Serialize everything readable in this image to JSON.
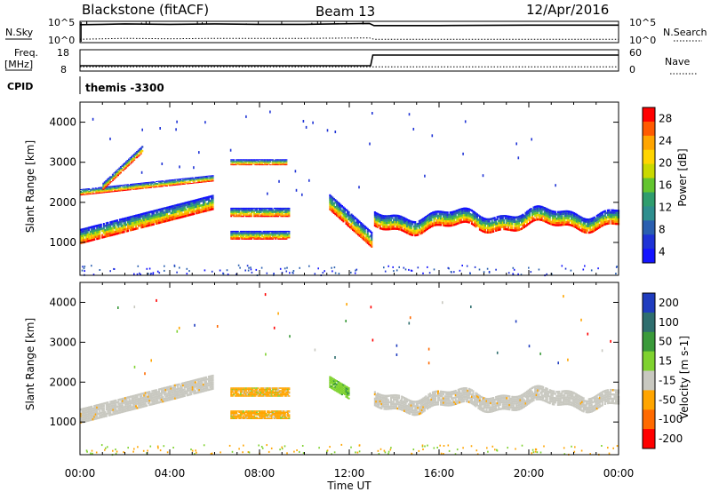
{
  "header": {
    "station": "Blackstone (fitACF)",
    "beam": "Beam 13",
    "date": "12/Apr/2016"
  },
  "colors": {
    "scatter_blue": "#1f49b8",
    "ground_gray": "#c6c6bf",
    "velocity_orange": "#f4a512",
    "velocity_green": "#6ecb35"
  },
  "chart_data": [
    {
      "type": "line",
      "title": "",
      "left_label": "N.Sky",
      "right_label": "N.Search",
      "left_ticks": [
        "10^5",
        "10^0"
      ],
      "right_ticks": [
        "10^5",
        "10^0"
      ],
      "x": [
        0,
        1,
        2,
        4,
        6,
        8,
        10,
        12.9,
        13.1,
        16,
        20,
        24
      ],
      "series": [
        {
          "name": "N.Sky",
          "values": [
            4.2,
            4.3,
            4.4,
            4.3,
            4.4,
            4.3,
            4.3,
            4.5,
            4.0,
            4.0,
            4.1,
            4.1
          ]
        },
        {
          "name": "N.Search",
          "values": [
            0.8,
            0.9,
            1.0,
            0.9,
            1.0,
            1.0,
            1.0,
            1.1,
            0.8,
            0.8,
            0.8,
            0.8
          ]
        }
      ],
      "ylim": [
        0,
        5
      ]
    },
    {
      "type": "line",
      "left_label": "Freq.",
      "left_unit": "[MHz]",
      "right_label": "Nave",
      "left_ticks": [
        "18",
        "8"
      ],
      "right_ticks": [
        "60",
        "0"
      ],
      "x": [
        0,
        12.95,
        13.05,
        24
      ],
      "series": [
        {
          "name": "Freq.",
          "values": [
            10.5,
            10.5,
            15.5,
            15.5
          ]
        },
        {
          "name": "Nave",
          "values": [
            10,
            10,
            10,
            10
          ]
        }
      ],
      "ylim": [
        8,
        18
      ]
    },
    {
      "type": "table",
      "label": "CPID",
      "entries": [
        {
          "start": 0,
          "text": "themis -3300"
        }
      ]
    },
    {
      "type": "heatmap",
      "quantity": "Power",
      "ylabel": "Slant Range [km]",
      "yticks": [
        1000,
        2000,
        3000,
        4000
      ],
      "ylim": [
        180,
        4500
      ],
      "colorbar_label": "Power [dB]",
      "colorbar_ticks": [
        "28",
        "24",
        "20",
        "16",
        "12",
        "8",
        "4"
      ],
      "colorbar_colors": [
        "#ff0000",
        "#ff5a00",
        "#ffa500",
        "#ffd500",
        "#c9d900",
        "#63c52f",
        "#2f9d6e",
        "#2e8e8e",
        "#2a5fb0",
        "#1f33d6",
        "#1414ff"
      ],
      "bands": [
        {
          "t0": 0.0,
          "t1": 5.9,
          "r_start": 1150,
          "r_end": 2000,
          "width": 380
        },
        {
          "t0": 0.0,
          "t1": 5.9,
          "r_start": 2250,
          "r_end": 2600,
          "width": 160
        },
        {
          "t0": 1.0,
          "t1": 2.8,
          "r_start": 2400,
          "r_end": 3350,
          "width": 180
        },
        {
          "t0": 6.7,
          "t1": 9.3,
          "r_start": 1750,
          "r_end": 1750,
          "width": 230
        },
        {
          "t0": 6.7,
          "t1": 9.3,
          "r_start": 1180,
          "r_end": 1180,
          "width": 220
        },
        {
          "t0": 6.7,
          "t1": 9.2,
          "r_start": 3000,
          "r_end": 3000,
          "width": 150
        },
        {
          "t0": 11.1,
          "t1": 13.0,
          "r_start": 2000,
          "r_end": 1050,
          "width": 400
        },
        {
          "t0": 13.1,
          "t1": 24.0,
          "r_start": 1500,
          "r_end": 1600,
          "width": 380
        }
      ]
    },
    {
      "type": "heatmap",
      "quantity": "Velocity",
      "ylabel": "Slant Range [km]",
      "xlabel": "Time UT",
      "yticks": [
        1000,
        2000,
        3000,
        4000
      ],
      "ylim": [
        180,
        4500
      ],
      "xticks": [
        "00:00",
        "04:00",
        "08:00",
        "12:00",
        "16:00",
        "20:00",
        "00:00"
      ],
      "xlim": [
        0,
        24
      ],
      "colorbar_label": "Velocity [m s-1]",
      "colorbar_ticks": [
        "200",
        "100",
        "50",
        "15",
        "-15",
        "-50",
        "-100",
        "-200"
      ],
      "colorbar_colors": [
        "#1f3cbf",
        "#2e6e6e",
        "#3a9a3a",
        "#7fd22f",
        "#c8c8c0",
        "#ffa500",
        "#ff6a00",
        "#ff0000"
      ],
      "bands": [
        {
          "t0": 0.0,
          "t1": 5.9,
          "r_start": 1150,
          "r_end": 2000,
          "width": 380,
          "class": "ground"
        },
        {
          "t0": 6.7,
          "t1": 9.3,
          "r_start": 1750,
          "r_end": 1750,
          "width": 230,
          "class": "orange"
        },
        {
          "t0": 6.7,
          "t1": 9.3,
          "r_start": 1180,
          "r_end": 1180,
          "width": 220,
          "class": "orange"
        },
        {
          "t0": 11.1,
          "t1": 12.0,
          "r_start": 2000,
          "r_end": 1700,
          "width": 300,
          "class": "green"
        },
        {
          "t0": 13.1,
          "t1": 24.0,
          "r_start": 1500,
          "r_end": 1600,
          "width": 380,
          "class": "ground"
        }
      ]
    }
  ]
}
